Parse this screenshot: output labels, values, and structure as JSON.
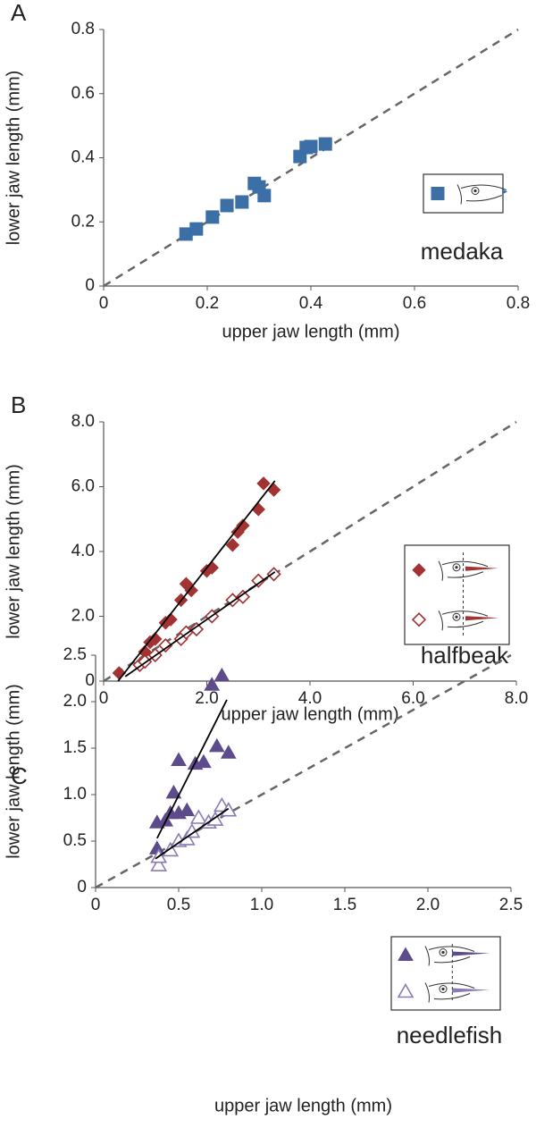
{
  "chart_data": [
    {
      "type": "scatter",
      "panel_label": "A",
      "annotation": "medaka",
      "x_label": "upper jaw length (mm)",
      "y_label": "lower jaw length (mm)",
      "xlim": [
        0,
        0.8
      ],
      "ylim": [
        0,
        0.8
      ],
      "xticks": [
        0,
        0.2,
        0.4,
        0.6,
        0.8
      ],
      "yticks": [
        0,
        0.2,
        0.4,
        0.6,
        0.8
      ],
      "identity_line": true,
      "series": [
        {
          "marker": "square",
          "filled": true,
          "color": "#3b6fa6",
          "x": [
            0.159,
            0.179,
            0.21,
            0.238,
            0.267,
            0.291,
            0.3,
            0.31,
            0.379,
            0.391,
            0.4,
            0.428
          ],
          "values": [
            0.162,
            0.178,
            0.215,
            0.251,
            0.262,
            0.32,
            0.309,
            0.282,
            0.404,
            0.432,
            0.435,
            0.443
          ]
        }
      ]
    },
    {
      "type": "scatter",
      "panel_label": "B",
      "annotation": "halfbeak",
      "x_label": "upper jaw length (mm)",
      "y_label": "lower jaw length (mm)",
      "xlim": [
        0,
        8
      ],
      "ylim": [
        0,
        8
      ],
      "xticks": [
        0,
        {
          "value": 2,
          "label": "2.0"
        },
        {
          "value": 4,
          "label": "4.0"
        },
        {
          "value": 6,
          "label": "6.0"
        },
        {
          "value": 8,
          "label": "8.0"
        }
      ],
      "yticks": [
        0,
        {
          "value": 2,
          "label": "2.0"
        },
        {
          "value": 4,
          "label": "4.0"
        },
        {
          "value": 6,
          "label": "6.0"
        },
        {
          "value": 8,
          "label": "8.0"
        }
      ],
      "identity_line": true,
      "series": [
        {
          "marker": "diamond",
          "filled": true,
          "color": "#a33333",
          "x": [
            0.3,
            0.8,
            0.9,
            1.0,
            1.2,
            1.3,
            1.5,
            1.6,
            1.7,
            2.0,
            2.1,
            2.5,
            2.6,
            2.7,
            3.0,
            3.1,
            3.3
          ],
          "values": [
            0.25,
            0.9,
            1.2,
            1.3,
            1.8,
            1.9,
            2.5,
            3.0,
            2.8,
            3.4,
            3.5,
            4.2,
            4.6,
            4.8,
            5.3,
            6.1,
            5.9
          ]
        },
        {
          "marker": "diamond",
          "filled": false,
          "color": "#a33333",
          "x": [
            0.7,
            0.8,
            1.0,
            1.2,
            1.5,
            1.6,
            1.8,
            2.1,
            2.5,
            2.7,
            3.0,
            3.3
          ],
          "values": [
            0.5,
            0.6,
            0.8,
            1.1,
            1.3,
            1.5,
            1.6,
            2.0,
            2.5,
            2.6,
            3.1,
            3.3
          ]
        },
        {
          "marker": "line",
          "color": "#000000",
          "x": [
            0.28,
            3.32
          ],
          "values": [
            0,
            6.18
          ]
        },
        {
          "marker": "line",
          "color": "#000000",
          "x": [
            0.42,
            3.32
          ],
          "values": [
            0.14,
            3.37
          ]
        }
      ]
    },
    {
      "type": "scatter",
      "panel_label": "C",
      "annotation": "needlefish",
      "x_label": "upper jaw length (mm)",
      "y_label": "lower jaw length (mm)",
      "xlim": [
        0,
        2.5
      ],
      "ylim": [
        0,
        2.5
      ],
      "xticks": [
        0,
        0.5,
        {
          "value": 1,
          "label": "1.0"
        },
        1.5,
        {
          "value": 2,
          "label": "2.0"
        },
        2.5
      ],
      "yticks": [
        0,
        0.5,
        {
          "value": 1,
          "label": "1.0"
        },
        1.5,
        {
          "value": 2,
          "label": "2.0"
        },
        2.5
      ],
      "identity_line": true,
      "series": [
        {
          "marker": "triangle",
          "filled": true,
          "color": "#5e4b8b",
          "x": [
            0.37,
            0.37,
            0.42,
            0.45,
            0.47,
            0.5,
            0.5,
            0.55,
            0.6,
            0.65,
            0.7,
            0.73,
            0.76,
            0.8
          ],
          "values": [
            0.42,
            0.7,
            0.72,
            0.8,
            1.02,
            1.37,
            0.8,
            0.83,
            1.33,
            1.35,
            2.18,
            1.52,
            2.28,
            1.45
          ]
        },
        {
          "marker": "triangle",
          "filled": false,
          "color": "#8b7bb3",
          "x": [
            0.38,
            0.38,
            0.45,
            0.5,
            0.55,
            0.58,
            0.62,
            0.68,
            0.72,
            0.76,
            0.8
          ],
          "values": [
            0.24,
            0.33,
            0.4,
            0.5,
            0.52,
            0.6,
            0.75,
            0.7,
            0.73,
            0.88,
            0.83
          ]
        },
        {
          "marker": "line",
          "color": "#000000",
          "x": [
            0.37,
            0.79
          ],
          "values": [
            0.53,
            2.02
          ]
        },
        {
          "marker": "line",
          "color": "#000000",
          "x": [
            0.36,
            0.8
          ],
          "values": [
            0.31,
            0.85
          ]
        }
      ]
    }
  ]
}
